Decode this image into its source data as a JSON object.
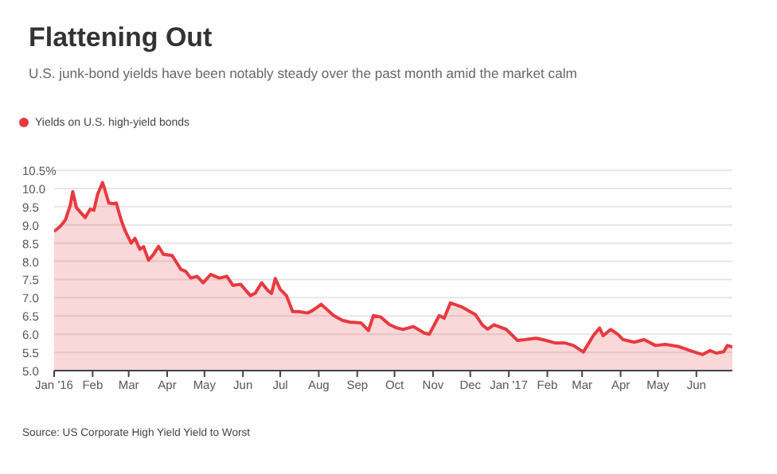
{
  "chart_data": {
    "type": "area",
    "title": "Flattening Out",
    "subtitle": "U.S. junk-bond yields have been notably steady over the past month amid the market calm",
    "annotations": [
      "Source: US Corporate High Yield Yield to Worst"
    ],
    "x": [
      "2016-01-01",
      "2016-01-06",
      "2016-01-10",
      "2016-01-14",
      "2016-01-16",
      "2016-01-19",
      "2016-01-26",
      "2016-01-30",
      "2016-02-02",
      "2016-02-05",
      "2016-02-09",
      "2016-02-11",
      "2016-02-14",
      "2016-02-18",
      "2016-02-20",
      "2016-02-24",
      "2016-02-27",
      "2016-03-03",
      "2016-03-06",
      "2016-03-10",
      "2016-03-13",
      "2016-03-17",
      "2016-03-21",
      "2016-03-25",
      "2016-03-29",
      "2016-04-05",
      "2016-04-12",
      "2016-04-16",
      "2016-04-20",
      "2016-04-25",
      "2016-04-30",
      "2016-05-06",
      "2016-05-13",
      "2016-05-19",
      "2016-05-24",
      "2016-05-30",
      "2016-06-07",
      "2016-06-11",
      "2016-06-16",
      "2016-06-21",
      "2016-06-24",
      "2016-06-27",
      "2016-07-01",
      "2016-07-06",
      "2016-07-11",
      "2016-07-16",
      "2016-07-23",
      "2016-07-27",
      "2016-08-03",
      "2016-08-13",
      "2016-08-20",
      "2016-08-26",
      "2016-09-04",
      "2016-09-10",
      "2016-09-14",
      "2016-09-20",
      "2016-09-27",
      "2016-10-03",
      "2016-10-08",
      "2016-10-16",
      "2016-10-25",
      "2016-10-29",
      "2016-11-06",
      "2016-11-10",
      "2016-11-15",
      "2016-11-24",
      "2016-12-05",
      "2016-12-11",
      "2016-12-15",
      "2016-12-20",
      "2016-12-30",
      "2017-01-08",
      "2017-01-14",
      "2017-01-23",
      "2017-01-31",
      "2017-02-07",
      "2017-02-15",
      "2017-02-22",
      "2017-03-02",
      "2017-03-10",
      "2017-03-15",
      "2017-03-18",
      "2017-03-24",
      "2017-03-30",
      "2017-04-03",
      "2017-04-12",
      "2017-04-20",
      "2017-04-29",
      "2017-05-07",
      "2017-05-18",
      "2017-05-27",
      "2017-06-06",
      "2017-06-12",
      "2017-06-17",
      "2017-06-23",
      "2017-06-26",
      "2017-06-30"
    ],
    "series": [
      {
        "name": "Yields on U.S. high-yield bonds",
        "color": "#e8393f",
        "values": [
          8.82,
          8.96,
          9.13,
          9.54,
          9.91,
          9.47,
          9.2,
          9.43,
          9.4,
          9.84,
          10.16,
          9.95,
          9.6,
          9.58,
          9.6,
          9.13,
          8.85,
          8.5,
          8.63,
          8.33,
          8.4,
          8.03,
          8.19,
          8.41,
          8.19,
          8.16,
          7.78,
          7.72,
          7.54,
          7.59,
          7.41,
          7.64,
          7.54,
          7.59,
          7.34,
          7.37,
          7.06,
          7.13,
          7.41,
          7.2,
          7.12,
          7.53,
          7.23,
          7.06,
          6.62,
          6.62,
          6.58,
          6.65,
          6.82,
          6.51,
          6.38,
          6.33,
          6.31,
          6.1,
          6.51,
          6.47,
          6.26,
          6.17,
          6.13,
          6.21,
          6.03,
          6.0,
          6.51,
          6.44,
          6.86,
          6.75,
          6.54,
          6.24,
          6.14,
          6.26,
          6.13,
          5.83,
          5.85,
          5.89,
          5.83,
          5.76,
          5.76,
          5.69,
          5.51,
          5.96,
          6.17,
          5.96,
          6.13,
          5.99,
          5.85,
          5.78,
          5.85,
          5.69,
          5.72,
          5.66,
          5.55,
          5.44,
          5.55,
          5.48,
          5.52,
          5.69,
          5.65
        ]
      }
    ],
    "xlim": [
      "2016-01-01",
      "2017-06-30"
    ],
    "xticks": [
      {
        "value": "2016-01-01",
        "label": "Jan '16"
      },
      {
        "value": "2016-02-01",
        "label": "Feb"
      },
      {
        "value": "2016-03-01",
        "label": "Mar"
      },
      {
        "value": "2016-04-01",
        "label": "Apr"
      },
      {
        "value": "2016-05-01",
        "label": "May"
      },
      {
        "value": "2016-06-01",
        "label": "Jun"
      },
      {
        "value": "2016-07-01",
        "label": "Jul"
      },
      {
        "value": "2016-08-01",
        "label": "Aug"
      },
      {
        "value": "2016-09-01",
        "label": "Sep"
      },
      {
        "value": "2016-10-01",
        "label": "Oct"
      },
      {
        "value": "2016-11-01",
        "label": "Nov"
      },
      {
        "value": "2016-12-01",
        "label": "Dec"
      },
      {
        "value": "2017-01-01",
        "label": "Jan '17"
      },
      {
        "value": "2017-02-01",
        "label": "Feb"
      },
      {
        "value": "2017-03-01",
        "label": "Mar"
      },
      {
        "value": "2017-04-01",
        "label": "Apr"
      },
      {
        "value": "2017-05-01",
        "label": "May"
      },
      {
        "value": "2017-06-01",
        "label": "Jun"
      }
    ],
    "ylim": [
      5,
      10.5
    ],
    "yticks": [
      {
        "value": 5,
        "label": "5.0"
      },
      {
        "value": 5.5,
        "label": "5.5"
      },
      {
        "value": 6,
        "label": "6.0"
      },
      {
        "value": 6.5,
        "label": "6.5"
      },
      {
        "value": 7,
        "label": "7.0"
      },
      {
        "value": 7.5,
        "label": "7.5"
      },
      {
        "value": 8,
        "label": "8.0"
      },
      {
        "value": 8.5,
        "label": "8.5"
      },
      {
        "value": 9,
        "label": "9.0"
      },
      {
        "value": 9.5,
        "label": "9.5"
      },
      {
        "value": 10,
        "label": "10.0"
      },
      {
        "value": 10.5,
        "label": "10.5%"
      }
    ],
    "grid": "y",
    "legend": "top left",
    "marker": "none",
    "line_style": "solid"
  }
}
